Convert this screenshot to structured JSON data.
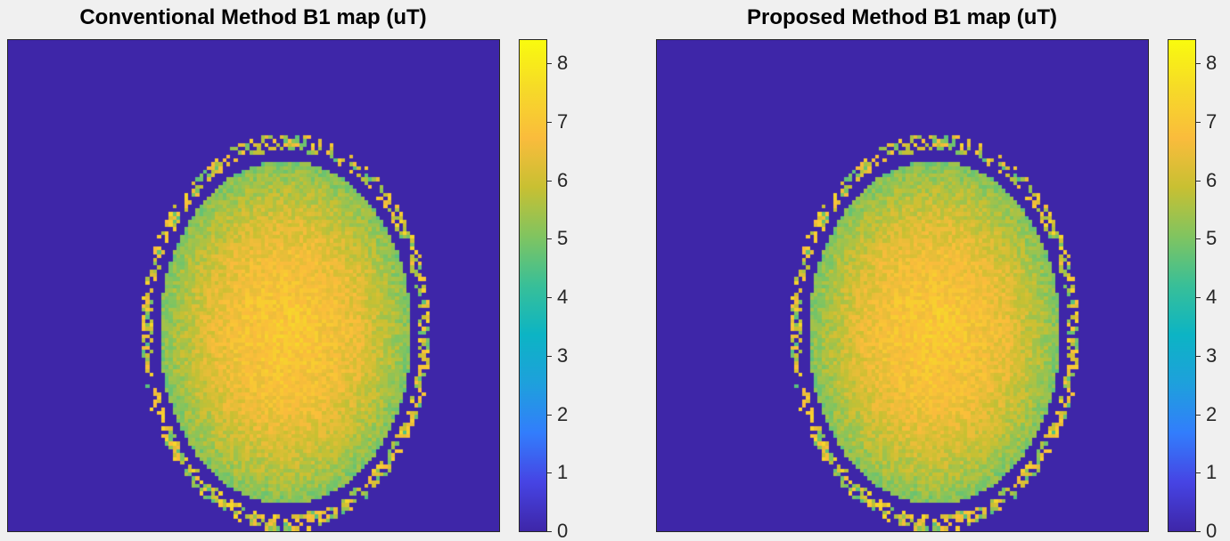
{
  "chart_data": [
    {
      "type": "heatmap",
      "title": "Conventional Method B1 map (uT)",
      "colormap": "parula",
      "clim": [
        0,
        8.4
      ],
      "colorbar_ticks": [
        "0",
        "1",
        "2",
        "3",
        "4",
        "5",
        "6",
        "7",
        "8"
      ],
      "colorbar_tick_values": [
        0,
        1,
        2,
        3,
        4,
        5,
        6,
        7,
        8
      ],
      "background_value": 0,
      "brain_peak_value": 7.0,
      "brain_edge_value": 5.0,
      "skull_ring_value": 6.0
    },
    {
      "type": "heatmap",
      "title": "Proposed Method B1 map (uT)",
      "colormap": "parula",
      "clim": [
        0,
        8.4
      ],
      "colorbar_ticks": [
        "0",
        "1",
        "2",
        "3",
        "4",
        "5",
        "6",
        "7",
        "8"
      ],
      "colorbar_tick_values": [
        0,
        1,
        2,
        3,
        4,
        5,
        6,
        7,
        8
      ],
      "background_value": 0,
      "brain_peak_value": 7.0,
      "brain_edge_value": 5.0,
      "skull_ring_value": 6.0
    }
  ]
}
